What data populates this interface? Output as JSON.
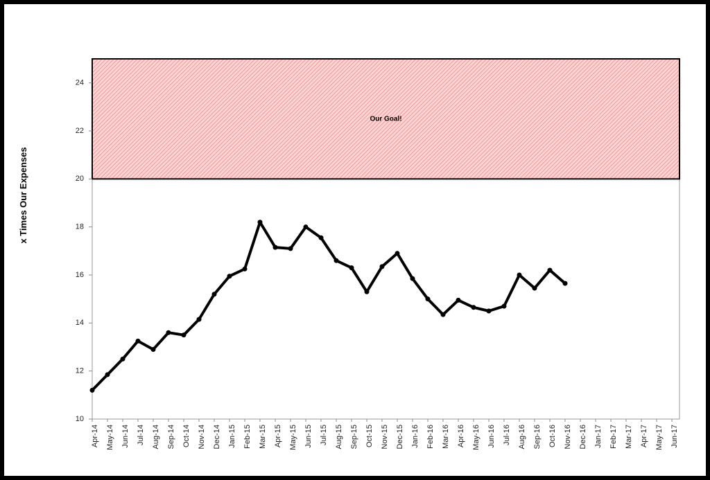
{
  "chart_data": {
    "type": "line",
    "ylabel": "x Times Our Expenses",
    "categories": [
      "Apr-14",
      "May-14",
      "Jun-14",
      "Jul-14",
      "Aug-14",
      "Sep-14",
      "Oct-14",
      "Nov-14",
      "Dec-14",
      "Jan-15",
      "Feb-15",
      "Mar-15",
      "Apr-15",
      "May-15",
      "Jun-15",
      "Jul-15",
      "Aug-15",
      "Sep-15",
      "Oct-15",
      "Nov-15",
      "Dec-15",
      "Jan-16",
      "Feb-16",
      "Mar-16",
      "Apr-16",
      "May-16",
      "Jun-16",
      "Jul-16",
      "Aug-16",
      "Sep-16",
      "Oct-16",
      "Nov-16",
      "Dec-16",
      "Jan-17",
      "Feb-17",
      "Mar-17",
      "Apr-17",
      "May-17",
      "Jun-17"
    ],
    "series": [
      {
        "name": "x Times Our Expenses",
        "color": "#000000",
        "values": [
          11.2,
          11.85,
          12.5,
          13.25,
          12.9,
          13.6,
          13.5,
          14.15,
          15.2,
          15.95,
          16.25,
          18.2,
          17.15,
          17.1,
          18.0,
          17.55,
          16.6,
          16.3,
          15.3,
          16.35,
          16.9,
          15.85,
          15.0,
          14.35,
          14.95,
          14.65,
          14.5,
          14.7,
          16.0,
          15.45,
          16.2,
          15.65,
          null,
          null,
          null,
          null,
          null,
          null,
          null
        ]
      }
    ],
    "goal_band": {
      "from": 20,
      "to": 25,
      "label": "Our Goal!"
    },
    "ylim": [
      10,
      25
    ],
    "yticks": [
      10,
      12,
      14,
      16,
      18,
      20,
      22,
      24
    ],
    "grid": false
  }
}
